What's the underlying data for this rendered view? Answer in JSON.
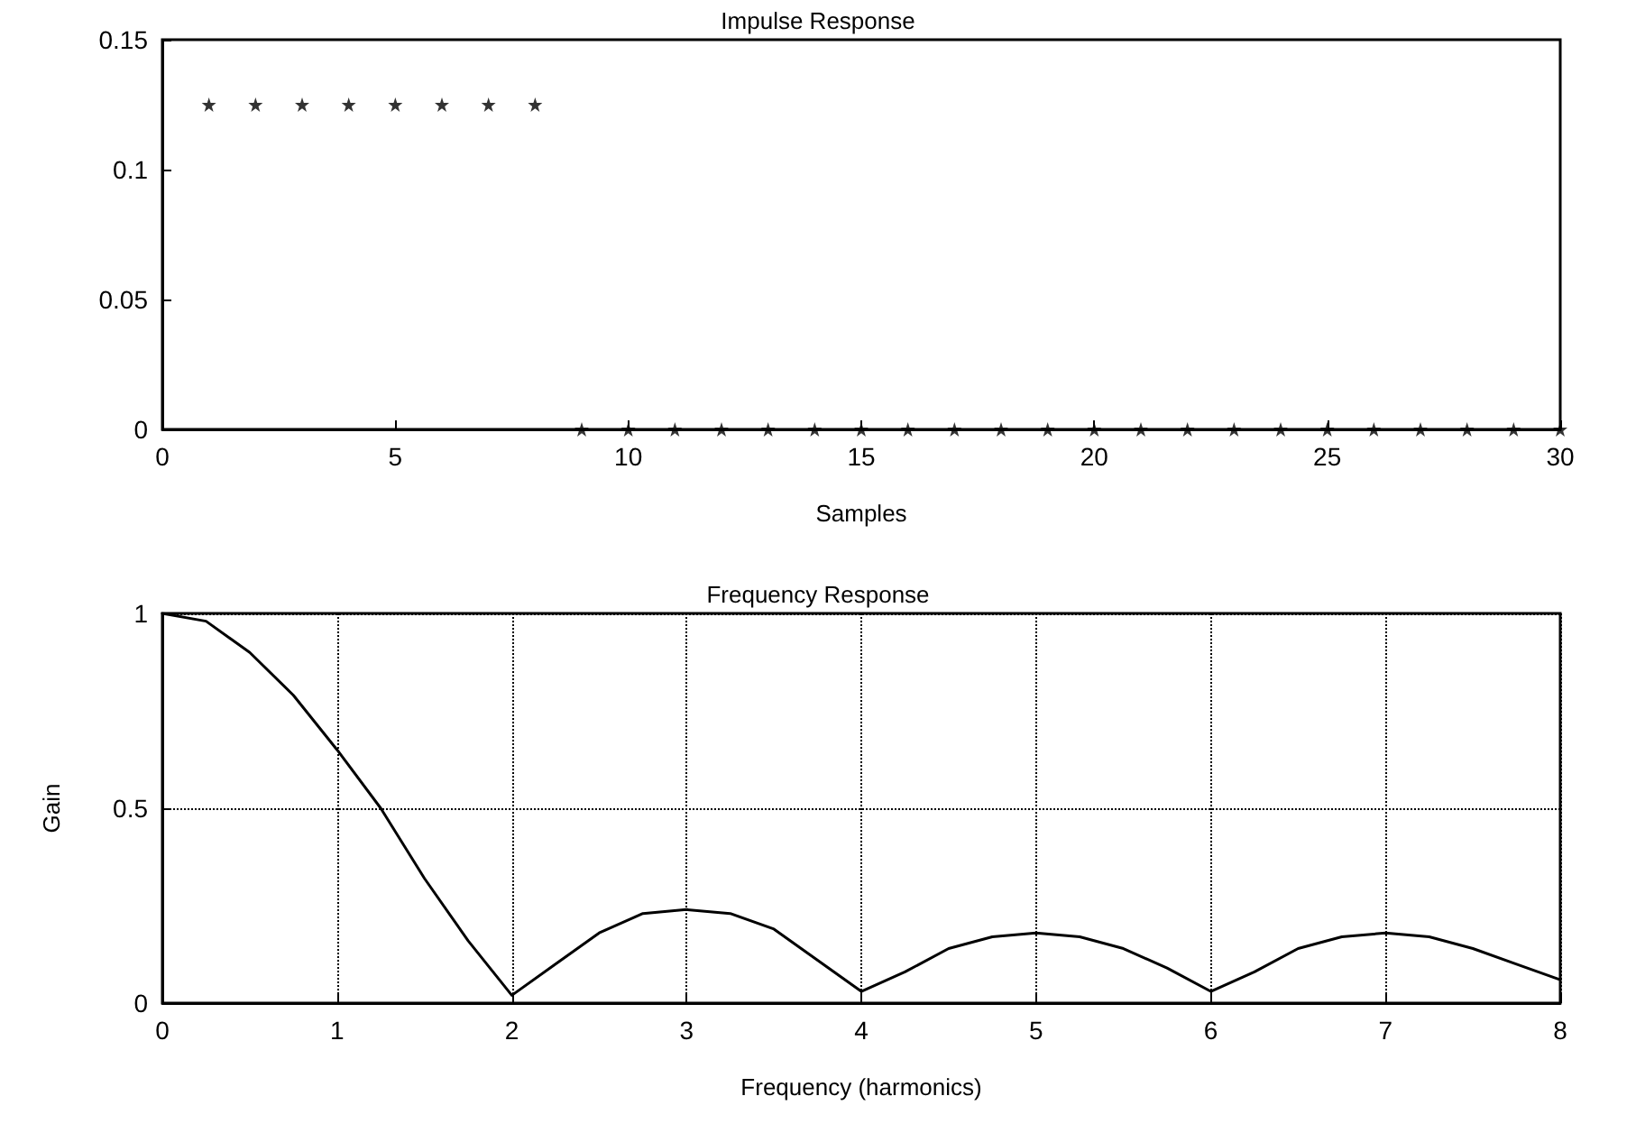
{
  "chart_data": [
    {
      "type": "scatter",
      "title": "Impulse Response",
      "xlabel": "Samples",
      "x": [
        1,
        2,
        3,
        4,
        5,
        6,
        7,
        8,
        9,
        10,
        11,
        12,
        13,
        14,
        15,
        16,
        17,
        18,
        19,
        20,
        21,
        22,
        23,
        24,
        25,
        26,
        27,
        28,
        29,
        30
      ],
      "values": [
        0.125,
        0.125,
        0.125,
        0.125,
        0.125,
        0.125,
        0.125,
        0.125,
        0,
        0,
        0,
        0,
        0,
        0,
        0,
        0,
        0,
        0,
        0,
        0,
        0,
        0,
        0,
        0,
        0,
        0,
        0,
        0,
        0,
        0
      ],
      "color": "#000000",
      "marker": "star",
      "xlim": [
        0,
        30
      ],
      "xticks": [
        0,
        5,
        10,
        15,
        20,
        25,
        30
      ],
      "ylim": [
        0,
        0.15
      ],
      "yticks": [
        0,
        0.05,
        0.1,
        0.15
      ],
      "grid": false
    },
    {
      "type": "line",
      "title": "Frequency Response",
      "xlabel": "Frequency (harmonics)",
      "ylabel": "Gain",
      "x": [
        0,
        0.25,
        0.5,
        0.75,
        1,
        1.25,
        1.5,
        1.75,
        2,
        2.25,
        2.5,
        2.75,
        3,
        3.25,
        3.5,
        3.75,
        4,
        4.25,
        4.5,
        4.75,
        5,
        5.25,
        5.5,
        5.75,
        6,
        6.25,
        6.5,
        6.75,
        7,
        7.25,
        7.5,
        7.75,
        8
      ],
      "values": [
        1,
        0.98,
        0.9,
        0.79,
        0.65,
        0.5,
        0.32,
        0.16,
        0.02,
        0.1,
        0.18,
        0.23,
        0.24,
        0.23,
        0.19,
        0.11,
        0.03,
        0.08,
        0.14,
        0.17,
        0.18,
        0.17,
        0.14,
        0.09,
        0.03,
        0.08,
        0.14,
        0.17,
        0.18,
        0.17,
        0.14,
        0.1,
        0.06
      ],
      "color": "#000000",
      "marker": "none",
      "line_style": "solid",
      "xlim": [
        0,
        8
      ],
      "xticks": [
        0,
        1,
        2,
        3,
        4,
        5,
        6,
        7,
        8
      ],
      "ylim": [
        0,
        1
      ],
      "yticks": [
        0,
        0.5,
        1
      ],
      "grid": true
    }
  ]
}
